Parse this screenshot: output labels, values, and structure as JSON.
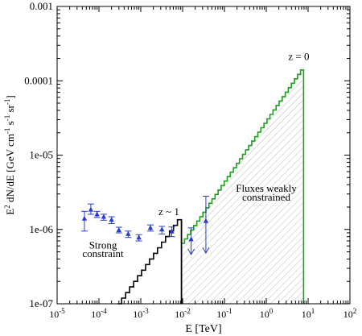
{
  "chart_data": {
    "type": "line",
    "xscale": "log",
    "yscale": "log",
    "xlim": [
      1e-05,
      100
    ],
    "ylim": [
      1e-07,
      0.001
    ],
    "grid": false,
    "xlabel": "E [TeV]",
    "ylabel": {
      "base": "E",
      "exp1": "2",
      "mid": " dN/dE [GeV cm",
      "exp2": "-1",
      "mid2": " s",
      "exp3": "-1",
      "mid3": " sr",
      "exp4": "-1",
      "end": "]"
    },
    "xticks": [
      {
        "v": 1e-05,
        "b": "10",
        "e": "-5"
      },
      {
        "v": 0.0001,
        "b": "10",
        "e": "-4"
      },
      {
        "v": 0.001,
        "b": "10",
        "e": "-3"
      },
      {
        "v": 0.01,
        "b": "10",
        "e": "-2"
      },
      {
        "v": 0.1,
        "b": "10",
        "e": "-1"
      },
      {
        "v": 1,
        "b": "10",
        "e": "0"
      },
      {
        "v": 10,
        "b": "10",
        "e": "1"
      },
      {
        "v": 100,
        "b": "10",
        "e": "2"
      }
    ],
    "yticks": [
      {
        "v": 1e-07,
        "label": "1e-07"
      },
      {
        "v": 1e-06,
        "label": "1e-06"
      },
      {
        "v": 1e-05,
        "label": "1e-05"
      },
      {
        "v": 0.0001,
        "label": "0.0001"
      },
      {
        "v": 0.001,
        "label": "0.001"
      }
    ],
    "series": [
      {
        "color": "#000000",
        "style": "step",
        "from": 0.00028,
        "to": 0.0094,
        "y_start": 1e-07,
        "y_end": 1.35e-06,
        "steps": 16
      },
      {
        "color": "#1f9d1f",
        "style": "step",
        "hatched": true,
        "from": 0.0094,
        "to": 7.8,
        "y_start": 6.5e-07,
        "y_end": 0.00014,
        "steps": 40
      },
      {
        "color": "#2a3ccf",
        "style": "errorbar",
        "points": [
          {
            "x": 4.5e-05,
            "y": 1.4e-06,
            "lo": 9.5e-07,
            "hi": 1.75e-06
          },
          {
            "x": 6.4e-05,
            "y": 1.85e-06,
            "lo": 1.6e-06,
            "hi": 2.2e-06
          },
          {
            "x": 9e-05,
            "y": 1.6e-06,
            "lo": 1.45e-06,
            "hi": 1.75e-06
          },
          {
            "x": 0.00013,
            "y": 1.48e-06,
            "lo": 1.33e-06,
            "hi": 1.6e-06
          },
          {
            "x": 0.0002,
            "y": 1.35e-06,
            "lo": 1.2e-06,
            "hi": 1.48e-06
          },
          {
            "x": 0.0003,
            "y": 9.8e-07,
            "lo": 9e-07,
            "hi": 1.07e-06
          },
          {
            "x": 0.0005,
            "y": 8.7e-07,
            "lo": 7.8e-07,
            "hi": 9.5e-07
          },
          {
            "x": 0.0009,
            "y": 7.8e-07,
            "lo": 7e-07,
            "hi": 8.5e-07
          },
          {
            "x": 0.0017,
            "y": 1.05e-06,
            "lo": 9.5e-07,
            "hi": 1.15e-06
          },
          {
            "x": 0.0032,
            "y": 1e-06,
            "lo": 8.7e-07,
            "hi": 1.1e-06
          },
          {
            "x": 0.0055,
            "y": 9.4e-07,
            "lo": 8e-07,
            "hi": 1.08e-06
          }
        ]
      }
    ],
    "upper_limits": [
      {
        "x": 0.016,
        "y": 7.4e-07,
        "lo": 4.6e-07,
        "hi": 1.05e-06
      },
      {
        "x": 0.036,
        "y": 1.3e-06,
        "lo": 4.8e-07,
        "hi": 2.8e-06
      }
    ],
    "annotations": [
      {
        "text": "z = 0",
        "x": 6.0,
        "y": 0.00019
      },
      {
        "text": "z ~ 1",
        "x": 0.0047,
        "y": 1.55e-06
      },
      {
        "text": "Strong",
        "x": 0.000125,
        "y": 5.5e-07
      },
      {
        "text": "constraint",
        "x": 0.000125,
        "y": 4.25e-07
      },
      {
        "text": "Fluxes weakly",
        "x": 1.0,
        "y": 3.2e-06
      },
      {
        "text": "constrained",
        "x": 1.0,
        "y": 2.45e-06
      }
    ]
  }
}
